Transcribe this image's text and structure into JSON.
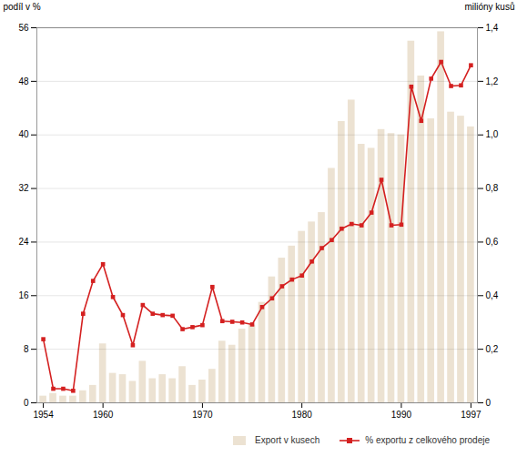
{
  "chart_data": {
    "type": "bar",
    "x": [
      1954,
      1955,
      1956,
      1957,
      1958,
      1959,
      1960,
      1961,
      1962,
      1963,
      1964,
      1965,
      1966,
      1967,
      1968,
      1969,
      1970,
      1971,
      1972,
      1973,
      1974,
      1975,
      1976,
      1977,
      1978,
      1979,
      1980,
      1981,
      1982,
      1983,
      1984,
      1985,
      1986,
      1987,
      1988,
      1989,
      1990,
      1991,
      1992,
      1993,
      1994,
      1995,
      1996,
      1997
    ],
    "xticks": [
      1954,
      1960,
      1970,
      1980,
      1990,
      1997
    ],
    "ylabel": "podíl v %",
    "y2label": "milióny kusů",
    "ylim": [
      0,
      56
    ],
    "yticks": [
      0,
      8,
      16,
      24,
      32,
      40,
      48,
      56
    ],
    "y2lim": [
      0,
      1.4
    ],
    "y2ticks": [
      0,
      {
        "value": 0.2,
        "label": "0,2"
      },
      {
        "value": 0.4,
        "label": "0,4"
      },
      {
        "value": 0.6,
        "label": "0,6"
      },
      {
        "value": 0.8,
        "label": "0,8"
      },
      {
        "value": 1,
        "label": "1,0"
      },
      {
        "value": 1.2,
        "label": "1,2"
      },
      {
        "value": 1.4,
        "label": "1,4"
      }
    ],
    "grid": true,
    "legend": "bottom",
    "series": [
      {
        "name": "Export v kusech",
        "type": "bar",
        "axis": "y2",
        "color": "#ece2d2",
        "values": [
          0.025,
          0.035,
          0.025,
          0.025,
          0.045,
          0.065,
          0.22,
          0.11,
          0.105,
          0.08,
          0.155,
          0.09,
          0.105,
          0.09,
          0.135,
          0.065,
          0.085,
          0.125,
          0.23,
          0.215,
          0.275,
          0.29,
          0.375,
          0.47,
          0.54,
          0.585,
          0.64,
          0.675,
          0.71,
          0.875,
          1.05,
          1.13,
          0.965,
          0.95,
          1.02,
          1.005,
          1.0,
          1.35,
          1.22,
          1.06,
          1.385,
          1.085,
          1.07,
          1.03
        ]
      },
      {
        "name": "% exportu z celkového prodeje",
        "type": "line",
        "marker": "square",
        "color": "#d42020",
        "values": [
          9.5,
          2.1,
          2.1,
          1.8,
          13.3,
          18.2,
          20.7,
          15.8,
          13.1,
          8.6,
          14.6,
          13.3,
          13.1,
          13.0,
          11.0,
          11.3,
          11.6,
          17.3,
          12.2,
          12.1,
          12.0,
          11.7,
          14.3,
          15.6,
          17.4,
          18.4,
          19.0,
          21.1,
          23.1,
          24.3,
          26.0,
          26.7,
          26.5,
          28.4,
          33.3,
          26.5,
          26.6,
          47.2,
          42.1,
          48.4,
          50.9,
          47.3,
          47.4,
          50.4
        ]
      }
    ]
  }
}
